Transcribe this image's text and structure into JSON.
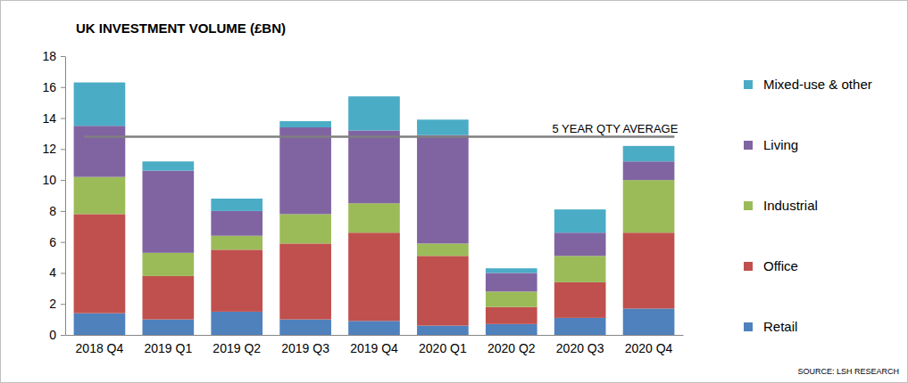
{
  "chart_data": {
    "type": "bar",
    "title": "UK INVESTMENT VOLUME (£BN)",
    "source": "SOURCE: LSH RESEARCH",
    "stacked": true,
    "grid": false,
    "legend": "right",
    "categories": [
      "2018 Q4",
      "2019 Q1",
      "2019 Q2",
      "2019 Q3",
      "2019 Q4",
      "2020 Q1",
      "2020 Q2",
      "2020 Q3",
      "2020 Q4"
    ],
    "series": [
      {
        "name": "Retail",
        "color": "#4f81bd",
        "values": [
          1.4,
          1.0,
          1.5,
          1.0,
          0.9,
          0.6,
          0.7,
          1.1,
          1.7
        ]
      },
      {
        "name": "Office",
        "color": "#c0504d",
        "values": [
          6.4,
          2.8,
          4.0,
          4.9,
          5.7,
          4.5,
          1.1,
          2.3,
          4.9
        ]
      },
      {
        "name": "Industrial",
        "color": "#9bbb59",
        "values": [
          2.4,
          1.5,
          0.9,
          1.9,
          1.9,
          0.8,
          1.0,
          1.7,
          3.4
        ]
      },
      {
        "name": "Living",
        "color": "#8064a2",
        "values": [
          3.3,
          5.3,
          1.6,
          5.6,
          4.7,
          7.0,
          1.2,
          1.5,
          1.2
        ]
      },
      {
        "name": "Mixed-use & other",
        "color": "#4bacc6",
        "values": [
          2.8,
          0.6,
          0.8,
          0.4,
          2.2,
          1.0,
          0.3,
          1.5,
          1.0
        ]
      }
    ],
    "ylim": [
      0,
      18
    ],
    "yticks": [
      0,
      2,
      4,
      6,
      8,
      10,
      12,
      14,
      16,
      18
    ],
    "annotations": [
      {
        "text": "5 YEAR QTY AVERAGE",
        "y": 12.8
      }
    ]
  }
}
